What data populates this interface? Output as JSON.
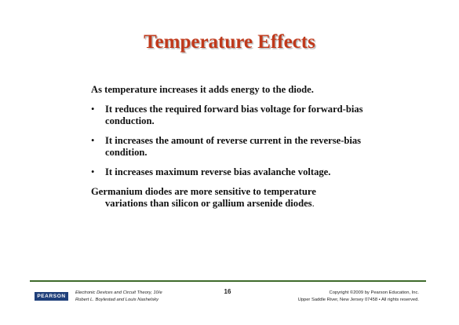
{
  "slide": {
    "title": "Temperature Effects",
    "intro": "As temperature increases it adds energy to the diode.",
    "bullet_mark": "•",
    "bullets": [
      "It reduces the required forward bias voltage for forward-bias conduction.",
      "It increases the amount of reverse current in the reverse-bias condition.",
      "It increases maximum reverse bias avalanche voltage."
    ],
    "closing_line1": "Germanium diodes are more sensitive to temperature",
    "closing_line2": "variations than silicon or gallium arsenide diodes",
    "closing_end": "."
  },
  "footer": {
    "logo_text": "PEARSON",
    "book_title": "Electronic Devices and Circuit Theory, 10/e",
    "authors": "Robert L. Boylestad and Louis Nashelsky",
    "page_number": "16",
    "copyright": "Copyright ©2009 by Pearson Education, Inc.",
    "address": "Upper Saddle River, New Jersey 07458 • All rights reserved."
  },
  "colors": {
    "title": "#c0391b",
    "footer_rule": "#3f6b2c",
    "logo_bg": "#1f3f7a"
  }
}
